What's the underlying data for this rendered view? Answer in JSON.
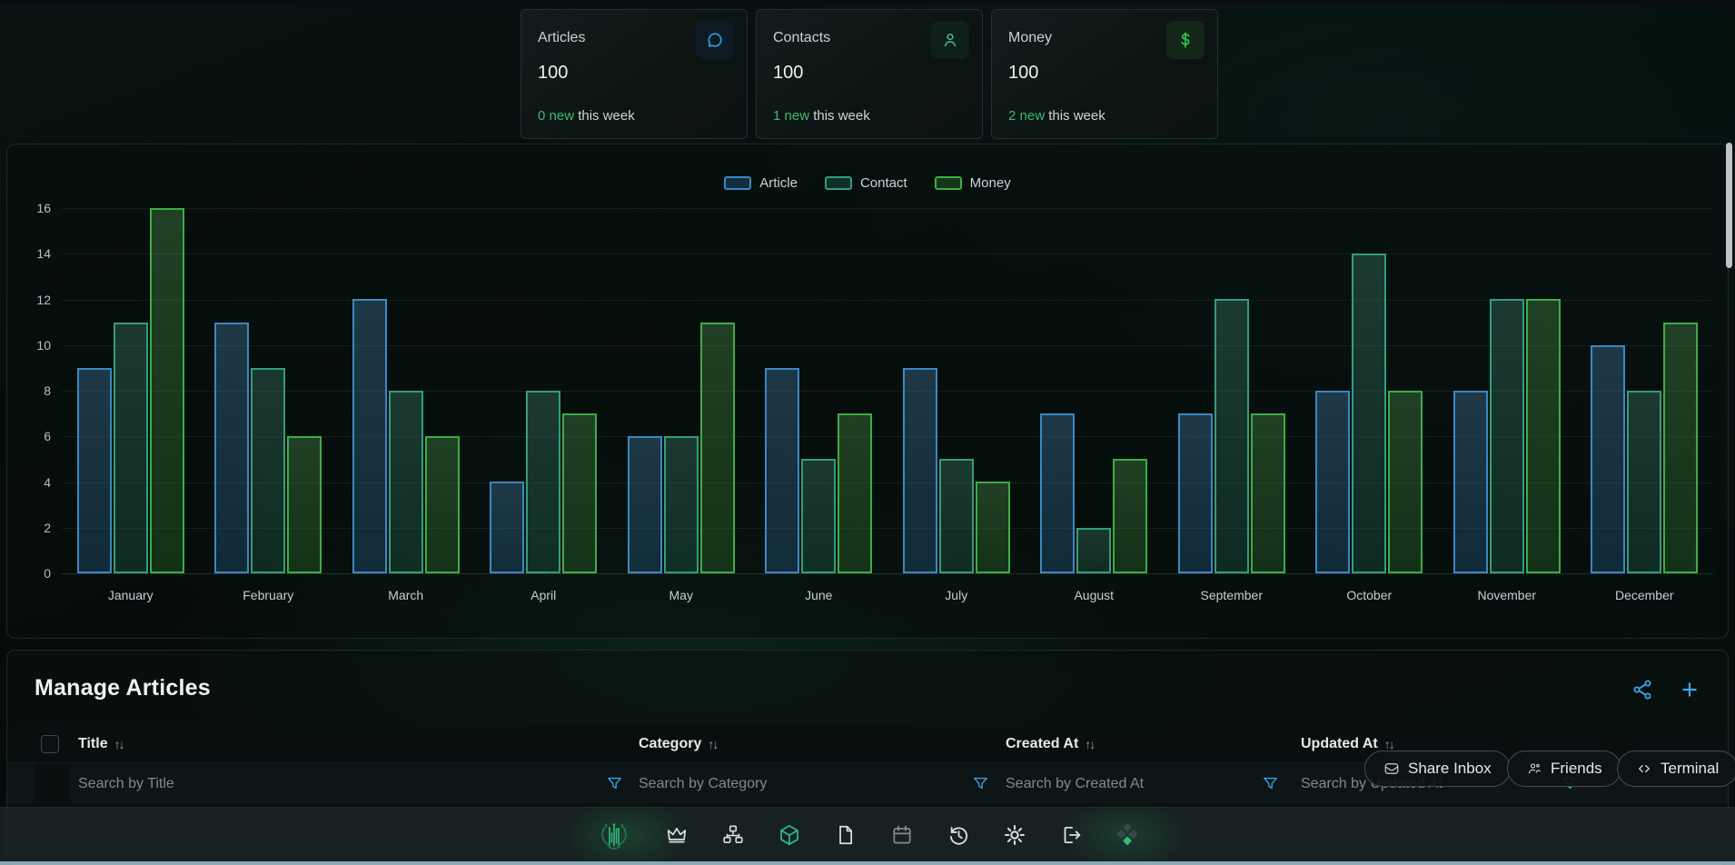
{
  "cards": [
    {
      "title": "Articles",
      "value": "100",
      "count": "0 new",
      "suffix": " this week",
      "icon": "chat-bubble-icon",
      "accent": "#2f9fe0",
      "icon_bg": "#0d1a24"
    },
    {
      "title": "Contacts",
      "value": "100",
      "count": "1 new",
      "suffix": " this week",
      "icon": "person-icon",
      "accent": "#41bd90",
      "icon_bg": "#0f1f1a"
    },
    {
      "title": "Money",
      "value": "100",
      "count": "2 new",
      "suffix": " this week",
      "icon": "dollar-icon",
      "accent": "#38c04e",
      "icon_bg": "#132617"
    }
  ],
  "chart_data": {
    "type": "bar",
    "categories": [
      "January",
      "February",
      "March",
      "April",
      "May",
      "June",
      "July",
      "August",
      "September",
      "October",
      "November",
      "December"
    ],
    "series": [
      {
        "name": "Article",
        "values": [
          9,
          11,
          12,
          4,
          6,
          9,
          9,
          7,
          7,
          8,
          8,
          10
        ],
        "border": "#3e86c2",
        "fill": "rgba(40,96,140,0.38)"
      },
      {
        "name": "Contact",
        "values": [
          11,
          9,
          8,
          8,
          6,
          5,
          5,
          2,
          12,
          14,
          12,
          8
        ],
        "border": "#2f9f7d",
        "fill": "rgba(31,99,78,0.38)"
      },
      {
        "name": "Money",
        "values": [
          16,
          6,
          6,
          7,
          11,
          7,
          4,
          5,
          7,
          8,
          12,
          11
        ],
        "border": "#3bae45",
        "fill": "rgba(44,118,48,0.38)"
      }
    ],
    "title": "",
    "xlabel": "",
    "ylabel": "",
    "ylim": [
      0,
      16
    ],
    "yticks": [
      0,
      2,
      4,
      6,
      8,
      10,
      12,
      14,
      16
    ],
    "grid": true,
    "legend_position": "top"
  },
  "manage": {
    "title": "Manage Articles",
    "toolbar": {
      "share_icon": "share-nodes-icon",
      "add_icon": "plus-icon"
    },
    "columns": [
      {
        "label": "Title",
        "sort": "↑↓",
        "placeholder": "Search by Title"
      },
      {
        "label": "Category",
        "sort": "↑↓",
        "placeholder": "Search by Category"
      },
      {
        "label": "Created At",
        "sort": "↑↓",
        "placeholder": "Search by Created At"
      },
      {
        "label": "Updated At",
        "sort": "↑↓",
        "placeholder": "Search by Updated At"
      }
    ]
  },
  "floating_buttons": [
    {
      "label": "Share Inbox",
      "icon": "inbox-icon"
    },
    {
      "label": "Friends",
      "icon": "friends-icon"
    },
    {
      "label": "Terminal",
      "icon": "terminal-icon"
    }
  ],
  "dock": {
    "items": [
      {
        "icon": "logo-icon",
        "active": false
      },
      {
        "icon": "crown-icon",
        "active": false
      },
      {
        "icon": "sitemap-icon",
        "active": false
      },
      {
        "icon": "cube-icon",
        "active": true
      },
      {
        "icon": "file-icon",
        "active": false
      },
      {
        "icon": "calendar-icon",
        "active": false
      },
      {
        "icon": "history-icon",
        "active": false
      },
      {
        "icon": "gear-icon",
        "active": false
      },
      {
        "icon": "logout-icon",
        "active": false
      },
      {
        "icon": "diamonds-icon",
        "active": false
      }
    ]
  },
  "colors": {
    "accent_blue": "#3da5e8",
    "accent_green": "#3dbb76",
    "dock_active": "#2ebd8a"
  }
}
